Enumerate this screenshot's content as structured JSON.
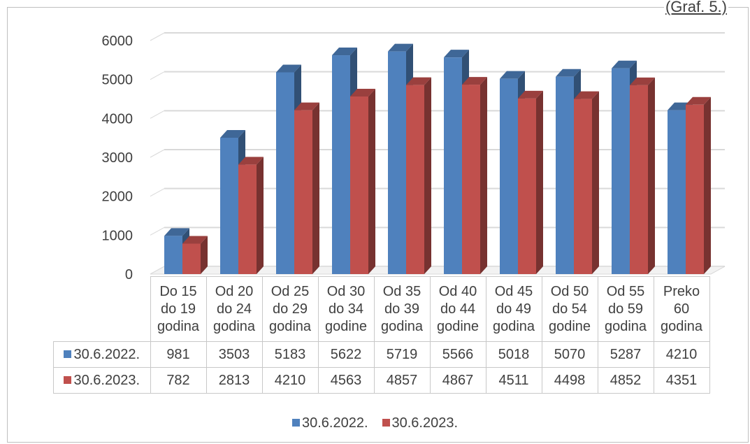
{
  "caption": "(Graf. 5.)",
  "colors": {
    "series1": "#4f81bd",
    "series2": "#c0504d",
    "grid": "#d9d9d9"
  },
  "chart_data": {
    "type": "bar",
    "categories": [
      [
        "Do 15",
        "do 19",
        "godina"
      ],
      [
        "Od 20",
        "do 24",
        "godina"
      ],
      [
        "Od 25",
        "do 29",
        "godina"
      ],
      [
        "Od 30",
        "do 34",
        "godine"
      ],
      [
        "Od 35",
        "do 39",
        "godina"
      ],
      [
        "Od 40",
        "do 44",
        "godine"
      ],
      [
        "Od 45",
        "do 49",
        "godina"
      ],
      [
        "Od 50",
        "do 54",
        "godine"
      ],
      [
        "Od 55",
        "do 59",
        "godina"
      ],
      [
        "Preko",
        "60",
        "godina"
      ]
    ],
    "series": [
      {
        "name": "30.6.2022.",
        "values": [
          981,
          3503,
          5183,
          5622,
          5719,
          5566,
          5018,
          5070,
          5287,
          4210
        ]
      },
      {
        "name": "30.6.2023.",
        "values": [
          782,
          2813,
          4210,
          4563,
          4857,
          4867,
          4511,
          4498,
          4852,
          4351
        ]
      }
    ],
    "ylim": [
      0,
      6000
    ],
    "yticks": [
      0,
      1000,
      2000,
      3000,
      4000,
      5000,
      6000
    ],
    "grid": true,
    "legend": "bottom",
    "data_table": true,
    "three_d": true
  }
}
